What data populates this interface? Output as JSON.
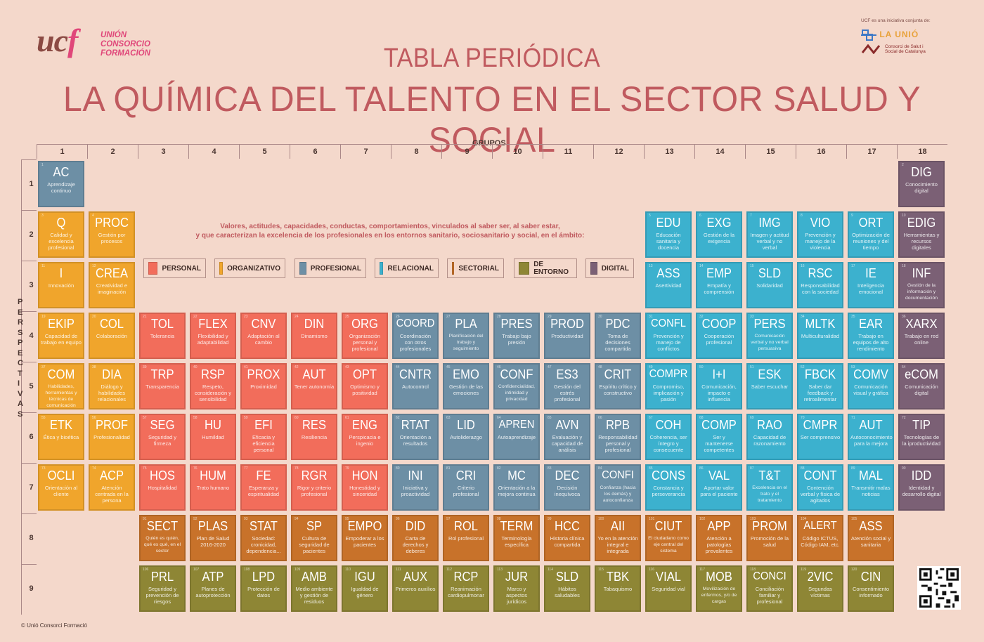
{
  "logo": {
    "mark": "ucf",
    "line1": "UNIÓN",
    "line2": "CONSORCIO",
    "line3": "FORMACIÓN"
  },
  "partners": {
    "note": "UCF es una iniciativa conjunta de:",
    "partner1": "LA UNIÓ",
    "partner2_line1": "Consorci de Salut i",
    "partner2_line2": "Social de Catalunya"
  },
  "title": {
    "line1": "TABLA PERIÓDICA",
    "line2": "LA QUÍMICA DEL TALENTO EN EL SECTOR SALUD Y SOCIAL"
  },
  "axes": {
    "groups_label": "GRUPOS",
    "groups": [
      "1",
      "2",
      "3",
      "4",
      "5",
      "6",
      "7",
      "8",
      "9",
      "10",
      "11",
      "12",
      "13",
      "14",
      "15",
      "16",
      "17",
      "18"
    ],
    "periods": [
      "1",
      "2",
      "3",
      "4",
      "5",
      "6",
      "7",
      "8",
      "9"
    ],
    "perspectives_label": "PERSPECTIVAS"
  },
  "intro": {
    "line1": "Valores, actitudes, capacidades, conductas, comportamientos, vinculados al saber ser, al saber estar,",
    "line2": "y que caracterizan la excelencia de los profesionales en los entornos sanitario, sociosanitario y social, en el ámbito:"
  },
  "categories": {
    "personal": {
      "label": "PERSONAL",
      "color": "#f26d5b"
    },
    "organizativo": {
      "label": "ORGANIZATIVO",
      "color": "#f0a52c"
    },
    "profesional": {
      "label": "PROFESIONAL",
      "color": "#6d8fa5"
    },
    "relacional": {
      "label": "RELACIONAL",
      "color": "#3cb1ce"
    },
    "sectorial": {
      "label": "SECTORIAL",
      "color": "#c8722a"
    },
    "entorno": {
      "label": "DE ENTORNO",
      "color": "#8e8635"
    },
    "digital": {
      "label": "DIGITAL",
      "color": "#7b6075"
    }
  },
  "elements": [
    {
      "sym": "AC",
      "desc": "Aprendizaje continuo",
      "cat": "profesional",
      "g": 1,
      "p": 1
    },
    {
      "sym": "DIG",
      "desc": "Conocimiento digital",
      "cat": "digital",
      "g": 18,
      "p": 1
    },
    {
      "sym": "Q",
      "desc": "Calidad y excelencia profesional",
      "cat": "organizativo",
      "g": 1,
      "p": 2
    },
    {
      "sym": "PROC",
      "desc": "Gestión por procesos",
      "cat": "organizativo",
      "g": 2,
      "p": 2
    },
    {
      "sym": "EDU",
      "desc": "Educación sanitaria y docencia",
      "cat": "relacional",
      "g": 13,
      "p": 2
    },
    {
      "sym": "EXG",
      "desc": "Gestión de la exigencia",
      "cat": "relacional",
      "g": 14,
      "p": 2
    },
    {
      "sym": "IMG",
      "desc": "Imagen y actitud verbal y no verbal",
      "cat": "relacional",
      "g": 15,
      "p": 2
    },
    {
      "sym": "VIO",
      "desc": "Prevención y manejo de la violencia",
      "cat": "relacional",
      "g": 16,
      "p": 2
    },
    {
      "sym": "ORT",
      "desc": "Optimización de reuniones y del tiempo",
      "cat": "relacional",
      "g": 17,
      "p": 2
    },
    {
      "sym": "EDIG",
      "desc": "Herramientas y recursos digitales",
      "cat": "digital",
      "g": 18,
      "p": 2
    },
    {
      "sym": "I",
      "desc": "Innovación",
      "cat": "organizativo",
      "g": 1,
      "p": 3
    },
    {
      "sym": "CREA",
      "desc": "Creatividad e imaginación",
      "cat": "organizativo",
      "g": 2,
      "p": 3
    },
    {
      "sym": "ASS",
      "desc": "Asertividad",
      "cat": "relacional",
      "g": 13,
      "p": 3
    },
    {
      "sym": "EMP",
      "desc": "Empatía y comprensión",
      "cat": "relacional",
      "g": 14,
      "p": 3
    },
    {
      "sym": "SLD",
      "desc": "Solidaridad",
      "cat": "relacional",
      "g": 15,
      "p": 3
    },
    {
      "sym": "RSC",
      "desc": "Responsabilidad con la sociedad",
      "cat": "relacional",
      "g": 16,
      "p": 3
    },
    {
      "sym": "IE",
      "desc": "Inteligencia emocional",
      "cat": "relacional",
      "g": 17,
      "p": 3
    },
    {
      "sym": "INF",
      "desc": "Gestión de la información y documentación",
      "cat": "digital",
      "g": 18,
      "p": 3
    },
    {
      "sym": "EKIP",
      "desc": "Capacidad de trabajo en equipo",
      "cat": "organizativo",
      "g": 1,
      "p": 4
    },
    {
      "sym": "COL",
      "desc": "Colaboración",
      "cat": "organizativo",
      "g": 2,
      "p": 4
    },
    {
      "sym": "TOL",
      "desc": "Tolerancia",
      "cat": "personal",
      "g": 3,
      "p": 4
    },
    {
      "sym": "FLEX",
      "desc": "Flexibilidad y adaptabilidad",
      "cat": "personal",
      "g": 4,
      "p": 4
    },
    {
      "sym": "CNV",
      "desc": "Adaptación al cambio",
      "cat": "personal",
      "g": 5,
      "p": 4
    },
    {
      "sym": "DIN",
      "desc": "Dinamismo",
      "cat": "personal",
      "g": 6,
      "p": 4
    },
    {
      "sym": "ORG",
      "desc": "Organización personal y profesional",
      "cat": "personal",
      "g": 7,
      "p": 4
    },
    {
      "sym": "COORD",
      "desc": "Coordinación con otros profesionales",
      "cat": "profesional",
      "g": 8,
      "p": 4
    },
    {
      "sym": "PLA",
      "desc": "Planificación del trabajo y seguimiento",
      "cat": "profesional",
      "g": 9,
      "p": 4
    },
    {
      "sym": "PRES",
      "desc": "Trabajo bajo presión",
      "cat": "profesional",
      "g": 10,
      "p": 4
    },
    {
      "sym": "PROD",
      "desc": "Productividad",
      "cat": "profesional",
      "g": 11,
      "p": 4
    },
    {
      "sym": "PDC",
      "desc": "Toma de decisiones compartida",
      "cat": "profesional",
      "g": 12,
      "p": 4
    },
    {
      "sym": "CONFL",
      "desc": "Prevención y manejo de conflictos",
      "cat": "relacional",
      "g": 13,
      "p": 4
    },
    {
      "sym": "COOP",
      "desc": "Cooperación profesional",
      "cat": "relacional",
      "g": 14,
      "p": 4
    },
    {
      "sym": "PERS",
      "desc": "Comunicación verbal y no verbal persuasiva",
      "cat": "relacional",
      "g": 15,
      "p": 4
    },
    {
      "sym": "MLTK",
      "desc": "Multiculturalidad",
      "cat": "relacional",
      "g": 16,
      "p": 4
    },
    {
      "sym": "EAR",
      "desc": "Trabajo en equipos de alto rendimiento",
      "cat": "relacional",
      "g": 17,
      "p": 4
    },
    {
      "sym": "XARX",
      "desc": "Trabajo en red online",
      "cat": "digital",
      "g": 18,
      "p": 4
    },
    {
      "sym": "COM",
      "desc": "Habilidades, herramientas y técnicas de comunicación",
      "cat": "organizativo",
      "g": 1,
      "p": 5
    },
    {
      "sym": "DIA",
      "desc": "Diálogo y habilidades relacionales",
      "cat": "organizativo",
      "g": 2,
      "p": 5
    },
    {
      "sym": "TRP",
      "desc": "Transparencia",
      "cat": "personal",
      "g": 3,
      "p": 5
    },
    {
      "sym": "RSP",
      "desc": "Respeto, consideración y sensibilidad",
      "cat": "personal",
      "g": 4,
      "p": 5
    },
    {
      "sym": "PROX",
      "desc": "Proximidad",
      "cat": "personal",
      "g": 5,
      "p": 5
    },
    {
      "sym": "AUT",
      "desc": "Tener autonomía",
      "cat": "personal",
      "g": 6,
      "p": 5
    },
    {
      "sym": "OPT",
      "desc": "Optimismo y positividad",
      "cat": "personal",
      "g": 7,
      "p": 5
    },
    {
      "sym": "CNTR",
      "desc": "Autocontrol",
      "cat": "profesional",
      "g": 8,
      "p": 5
    },
    {
      "sym": "EMO",
      "desc": "Gestión de las emociones",
      "cat": "profesional",
      "g": 9,
      "p": 5
    },
    {
      "sym": "CONF",
      "desc": "Confidencialidad, intimidad y privacidad",
      "cat": "profesional",
      "g": 10,
      "p": 5
    },
    {
      "sym": "ES3",
      "desc": "Gestión del estrés profesional",
      "cat": "profesional",
      "g": 11,
      "p": 5
    },
    {
      "sym": "CRIT",
      "desc": "Espíritu crítico y constructivo",
      "cat": "profesional",
      "g": 12,
      "p": 5
    },
    {
      "sym": "COMPR",
      "desc": "Compromiso, implicación y pasión",
      "cat": "relacional",
      "g": 13,
      "p": 5
    },
    {
      "sym": "I+I",
      "desc": "Comunicación, impacto e influencia",
      "cat": "relacional",
      "g": 14,
      "p": 5
    },
    {
      "sym": "ESK",
      "desc": "Saber escuchar",
      "cat": "relacional",
      "g": 15,
      "p": 5
    },
    {
      "sym": "FBCK",
      "desc": "Saber dar feedback y retroalimentar",
      "cat": "relacional",
      "g": 16,
      "p": 5
    },
    {
      "sym": "COMV",
      "desc": "Comunicación visual y gráfica",
      "cat": "relacional",
      "g": 17,
      "p": 5
    },
    {
      "sym": "eCOM",
      "desc": "Comunicación digital",
      "cat": "digital",
      "g": 18,
      "p": 5
    },
    {
      "sym": "ETK",
      "desc": "Ética y bioética",
      "cat": "organizativo",
      "g": 1,
      "p": 6
    },
    {
      "sym": "PROF",
      "desc": "Profesionalidad",
      "cat": "organizativo",
      "g": 2,
      "p": 6
    },
    {
      "sym": "SEG",
      "desc": "Seguridad y firmeza",
      "cat": "personal",
      "g": 3,
      "p": 6
    },
    {
      "sym": "HU",
      "desc": "Humildad",
      "cat": "personal",
      "g": 4,
      "p": 6
    },
    {
      "sym": "EFI",
      "desc": "Eficacia y eficiencia personal",
      "cat": "personal",
      "g": 5,
      "p": 6
    },
    {
      "sym": "RES",
      "desc": "Resiliencia",
      "cat": "personal",
      "g": 6,
      "p": 6
    },
    {
      "sym": "ENG",
      "desc": "Perspicacia e ingenio",
      "cat": "personal",
      "g": 7,
      "p": 6
    },
    {
      "sym": "RTAT",
      "desc": "Orientación a resultados",
      "cat": "profesional",
      "g": 8,
      "p": 6
    },
    {
      "sym": "LID",
      "desc": "Autoliderazgo",
      "cat": "profesional",
      "g": 9,
      "p": 6
    },
    {
      "sym": "APREN",
      "desc": "Autoaprendizaje",
      "cat": "profesional",
      "g": 10,
      "p": 6
    },
    {
      "sym": "AVN",
      "desc": "Evaluación y capacidad de análisis",
      "cat": "profesional",
      "g": 11,
      "p": 6
    },
    {
      "sym": "RPB",
      "desc": "Responsabilidad personal y profesional",
      "cat": "profesional",
      "g": 12,
      "p": 6
    },
    {
      "sym": "COH",
      "desc": "Coherencia, ser íntegro y consecuente",
      "cat": "relacional",
      "g": 13,
      "p": 6
    },
    {
      "sym": "COMP",
      "desc": "Ser y mantenerse competentes",
      "cat": "relacional",
      "g": 14,
      "p": 6
    },
    {
      "sym": "RAO",
      "desc": "Capacidad de razonamiento",
      "cat": "relacional",
      "g": 15,
      "p": 6
    },
    {
      "sym": "CMPR",
      "desc": "Ser comprensivo",
      "cat": "relacional",
      "g": 16,
      "p": 6
    },
    {
      "sym": "AUT",
      "desc": "Autoconocimiento para la mejora",
      "cat": "relacional",
      "g": 17,
      "p": 6
    },
    {
      "sym": "TIP",
      "desc": "Tecnologías de la iproductividad",
      "cat": "digital",
      "g": 18,
      "p": 6
    },
    {
      "sym": "OCLI",
      "desc": "Orientación al cliente",
      "cat": "organizativo",
      "g": 1,
      "p": 7
    },
    {
      "sym": "ACP",
      "desc": "Atención centrada en la persona",
      "cat": "organizativo",
      "g": 2,
      "p": 7
    },
    {
      "sym": "HOS",
      "desc": "Hospitalidad",
      "cat": "personal",
      "g": 3,
      "p": 7
    },
    {
      "sym": "HUM",
      "desc": "Trato humano",
      "cat": "personal",
      "g": 4,
      "p": 7
    },
    {
      "sym": "FE",
      "desc": "Esperanza y espiritualidad",
      "cat": "personal",
      "g": 5,
      "p": 7
    },
    {
      "sym": "RGR",
      "desc": "Rigor y criterio profesional",
      "cat": "personal",
      "g": 6,
      "p": 7
    },
    {
      "sym": "HON",
      "desc": "Honestidad y sinceridad",
      "cat": "personal",
      "g": 7,
      "p": 7
    },
    {
      "sym": "INI",
      "desc": "Iniciativa y proactividad",
      "cat": "profesional",
      "g": 8,
      "p": 7
    },
    {
      "sym": "CRI",
      "desc": "Criterio profesional",
      "cat": "profesional",
      "g": 9,
      "p": 7
    },
    {
      "sym": "MC",
      "desc": "Orientación a la mejora continua",
      "cat": "profesional",
      "g": 10,
      "p": 7
    },
    {
      "sym": "DEC",
      "desc": "Decisión inequívoca",
      "cat": "profesional",
      "g": 11,
      "p": 7
    },
    {
      "sym": "CONFI",
      "desc": "Confianza (hacia los demás) y autoconfianza",
      "cat": "profesional",
      "g": 12,
      "p": 7
    },
    {
      "sym": "CONS",
      "desc": "Constancia y perseverancia",
      "cat": "relacional",
      "g": 13,
      "p": 7
    },
    {
      "sym": "VAL",
      "desc": "Aportar valor para el paciente",
      "cat": "relacional",
      "g": 14,
      "p": 7
    },
    {
      "sym": "T&T",
      "desc": "Excelencia en el trato y el tratamiento",
      "cat": "relacional",
      "g": 15,
      "p": 7
    },
    {
      "sym": "CONT",
      "desc": "Contención verbal y física de agitados",
      "cat": "relacional",
      "g": 16,
      "p": 7
    },
    {
      "sym": "MAL",
      "desc": "Transmitir malas noticias",
      "cat": "relacional",
      "g": 17,
      "p": 7
    },
    {
      "sym": "IDD",
      "desc": "Identidad y desarrollo digital",
      "cat": "digital",
      "g": 18,
      "p": 7
    },
    {
      "sym": "SECT",
      "desc": "Quién es quién, qué es qué, en el sector",
      "cat": "sectorial",
      "g": 3,
      "p": 8
    },
    {
      "sym": "PLAS",
      "desc": "Plan de Salud 2016-2020",
      "cat": "sectorial",
      "g": 4,
      "p": 8
    },
    {
      "sym": "STAT",
      "desc": "Sociedad: cronicidad, dependencia...",
      "cat": "sectorial",
      "g": 5,
      "p": 8
    },
    {
      "sym": "SP",
      "desc": "Cultura de seguridad de pacientes",
      "cat": "sectorial",
      "g": 6,
      "p": 8
    },
    {
      "sym": "EMPO",
      "desc": "Empoderar a los pacientes",
      "cat": "sectorial",
      "g": 7,
      "p": 8
    },
    {
      "sym": "DID",
      "desc": "Carta de derechos y deberes",
      "cat": "sectorial",
      "g": 8,
      "p": 8
    },
    {
      "sym": "ROL",
      "desc": "Rol profesional",
      "cat": "sectorial",
      "g": 9,
      "p": 8
    },
    {
      "sym": "TERM",
      "desc": "Terminología específica",
      "cat": "sectorial",
      "g": 10,
      "p": 8
    },
    {
      "sym": "HCC",
      "desc": "Historia clínica compartida",
      "cat": "sectorial",
      "g": 11,
      "p": 8
    },
    {
      "sym": "AII",
      "desc": "Yo en la atención integral e integrada",
      "cat": "sectorial",
      "g": 12,
      "p": 8
    },
    {
      "sym": "CIUT",
      "desc": "El ciudadano como eje central del sistema",
      "cat": "sectorial",
      "g": 13,
      "p": 8
    },
    {
      "sym": "APP",
      "desc": "Atención a patologías prevalentes",
      "cat": "sectorial",
      "g": 14,
      "p": 8
    },
    {
      "sym": "PROM",
      "desc": "Promoción de la salud",
      "cat": "sectorial",
      "g": 15,
      "p": 8
    },
    {
      "sym": "ALERT",
      "desc": "Código ICTUS, Código IAM, etc.",
      "cat": "sectorial",
      "g": 16,
      "p": 8
    },
    {
      "sym": "ASS",
      "desc": "Atención social y sanitaria",
      "cat": "sectorial",
      "g": 17,
      "p": 8
    },
    {
      "sym": "PRL",
      "desc": "Seguridad y prevención de riesgos",
      "cat": "entorno",
      "g": 3,
      "p": 9
    },
    {
      "sym": "ATP",
      "desc": "Planes de autoprotección",
      "cat": "entorno",
      "g": 4,
      "p": 9
    },
    {
      "sym": "LPD",
      "desc": "Protección de datos",
      "cat": "entorno",
      "g": 5,
      "p": 9
    },
    {
      "sym": "AMB",
      "desc": "Medio ambiente y gestión de residuos",
      "cat": "entorno",
      "g": 6,
      "p": 9
    },
    {
      "sym": "IGU",
      "desc": "Igualdad de género",
      "cat": "entorno",
      "g": 7,
      "p": 9
    },
    {
      "sym": "AUX",
      "desc": "Primeros auxilios",
      "cat": "entorno",
      "g": 8,
      "p": 9
    },
    {
      "sym": "RCP",
      "desc": "Reanimación cardiopulmonar",
      "cat": "entorno",
      "g": 9,
      "p": 9
    },
    {
      "sym": "JUR",
      "desc": "Marco y aspectos jurídicos",
      "cat": "entorno",
      "g": 10,
      "p": 9
    },
    {
      "sym": "SLD",
      "desc": "Hábitos saludables",
      "cat": "entorno",
      "g": 11,
      "p": 9
    },
    {
      "sym": "TBK",
      "desc": "Tabaquismo",
      "cat": "entorno",
      "g": 12,
      "p": 9
    },
    {
      "sym": "VIAL",
      "desc": "Seguridad vial",
      "cat": "entorno",
      "g": 13,
      "p": 9
    },
    {
      "sym": "MOB",
      "desc": "Movilización de enfermos, y/o de cargas",
      "cat": "entorno",
      "g": 14,
      "p": 9
    },
    {
      "sym": "CONCI",
      "desc": "Conciliación familiar y profesional",
      "cat": "entorno",
      "g": 15,
      "p": 9
    },
    {
      "sym": "2VIC",
      "desc": "Segundas víctimas",
      "cat": "entorno",
      "g": 16,
      "p": 9
    },
    {
      "sym": "CIN",
      "desc": "Consentimiento informado",
      "cat": "entorno",
      "g": 17,
      "p": 9
    }
  ],
  "footer": {
    "copyright": "© Unió Consorci Formació"
  }
}
